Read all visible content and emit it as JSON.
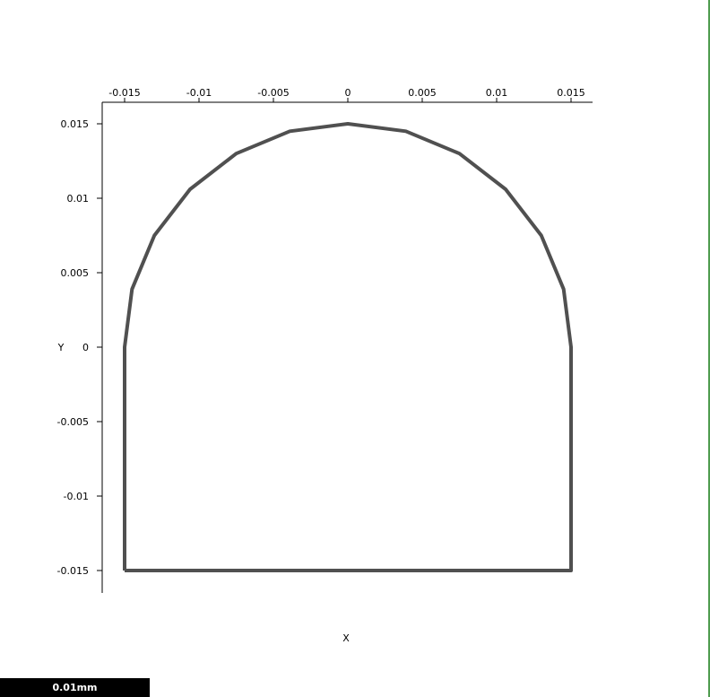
{
  "chart_data": {
    "type": "line",
    "title": "",
    "xlabel": "X",
    "ylabel": "Y",
    "xlim": [
      -0.0165,
      0.0165
    ],
    "ylim": [
      -0.0165,
      0.0165
    ],
    "x_ticks": [
      -0.015,
      -0.01,
      -0.005,
      0,
      0.005,
      0.01,
      0.015
    ],
    "x_tick_labels": [
      "-0.015",
      "-0.01",
      "-0.005",
      "0",
      "0.005",
      "0.01",
      "0.015"
    ],
    "y_ticks": [
      0.015,
      0.01,
      0.005,
      0,
      -0.005,
      -0.01,
      -0.015
    ],
    "y_tick_labels": [
      "0.015",
      "0.01",
      "0.005",
      "0",
      "-0.005",
      "-0.01",
      "-0.015"
    ],
    "grid": false,
    "x_axis_position": "top",
    "series": [
      {
        "shape": "arch: semicircle of radius 0.015 centered at origin joined to rectangle down to y = -0.015",
        "x": [
          -0.015,
          -0.015,
          -0.015,
          -0.0145,
          -0.013,
          -0.0106,
          -0.0075,
          -0.0039,
          0,
          0.0039,
          0.0075,
          0.0106,
          0.013,
          0.0145,
          0.015,
          0.015,
          -0.015
        ],
        "y": [
          -0.015,
          -0.015,
          0,
          0.0039,
          0.0075,
          0.0106,
          0.013,
          0.0145,
          0.015,
          0.0145,
          0.013,
          0.0106,
          0.0075,
          0.0039,
          0,
          -0.015,
          -0.015
        ],
        "color": "#505050"
      }
    ],
    "scale_bar_label": "0.01mm"
  },
  "colors": {
    "curve": "#505050",
    "axis": "#000000",
    "right_edge": "#4f9c4f"
  }
}
